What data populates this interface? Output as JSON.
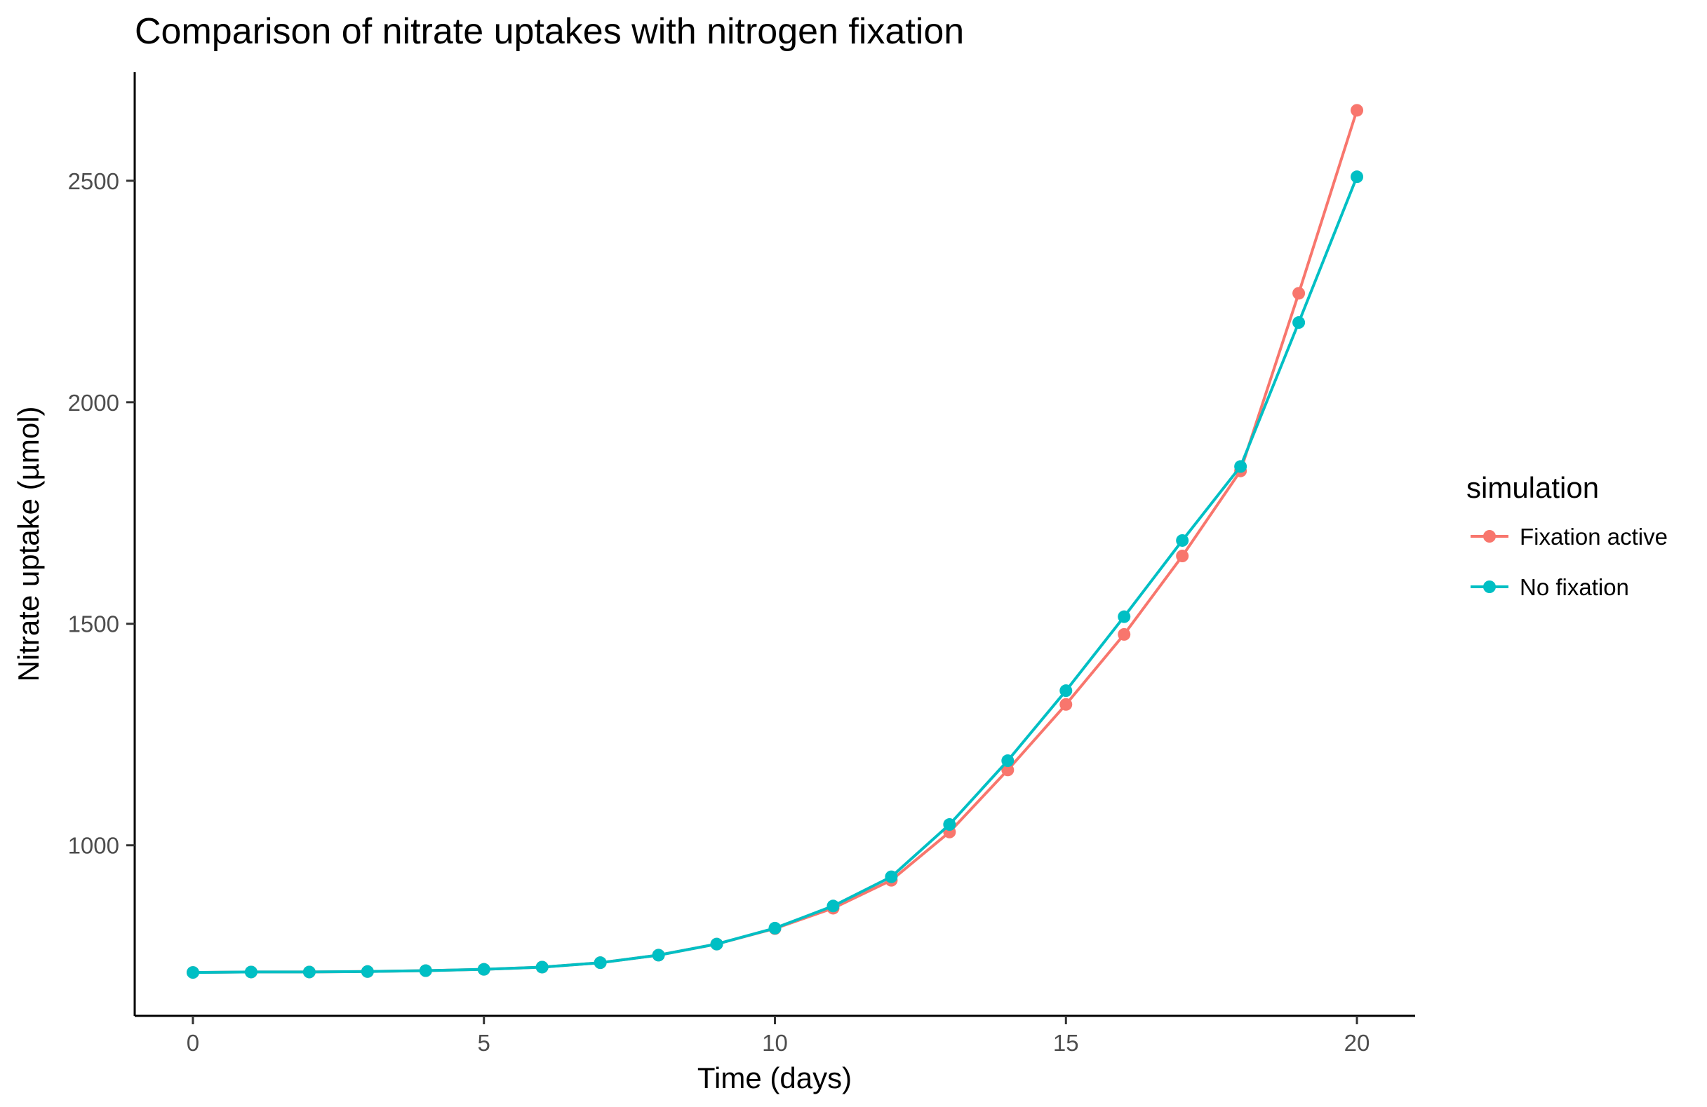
{
  "chart_data": {
    "type": "line",
    "title": "Comparison of nitrate uptakes with nitrogen fixation",
    "xlabel": "Time (days)",
    "ylabel": "Nitrate uptake (µmol)",
    "xlim": [
      -1,
      21
    ],
    "ylim": [
      615,
      2745
    ],
    "x_ticks": [
      0,
      5,
      10,
      15,
      20
    ],
    "y_ticks": [
      1000,
      1500,
      2000,
      2500
    ],
    "grid": false,
    "legend_title": "simulation",
    "legend_position": "right",
    "x": [
      0,
      1,
      2,
      3,
      4,
      5,
      6,
      7,
      8,
      9,
      10,
      11,
      12,
      13,
      14,
      15,
      16,
      17,
      18,
      19,
      20
    ],
    "series": [
      {
        "name": "Fixation active",
        "color": "#F8766D",
        "values": [
          713,
          714,
          714,
          715,
          717,
          720,
          725,
          735,
          752,
          777,
          812,
          858,
          921,
          1030,
          1170,
          1318,
          1476,
          1653,
          1845,
          2246,
          2659
        ]
      },
      {
        "name": "No fixation",
        "color": "#00BFC4",
        "values": [
          713,
          714,
          714,
          715,
          717,
          720,
          725,
          735,
          752,
          777,
          813,
          863,
          929,
          1047,
          1191,
          1349,
          1516,
          1688,
          1855,
          2180,
          2509
        ]
      }
    ]
  }
}
